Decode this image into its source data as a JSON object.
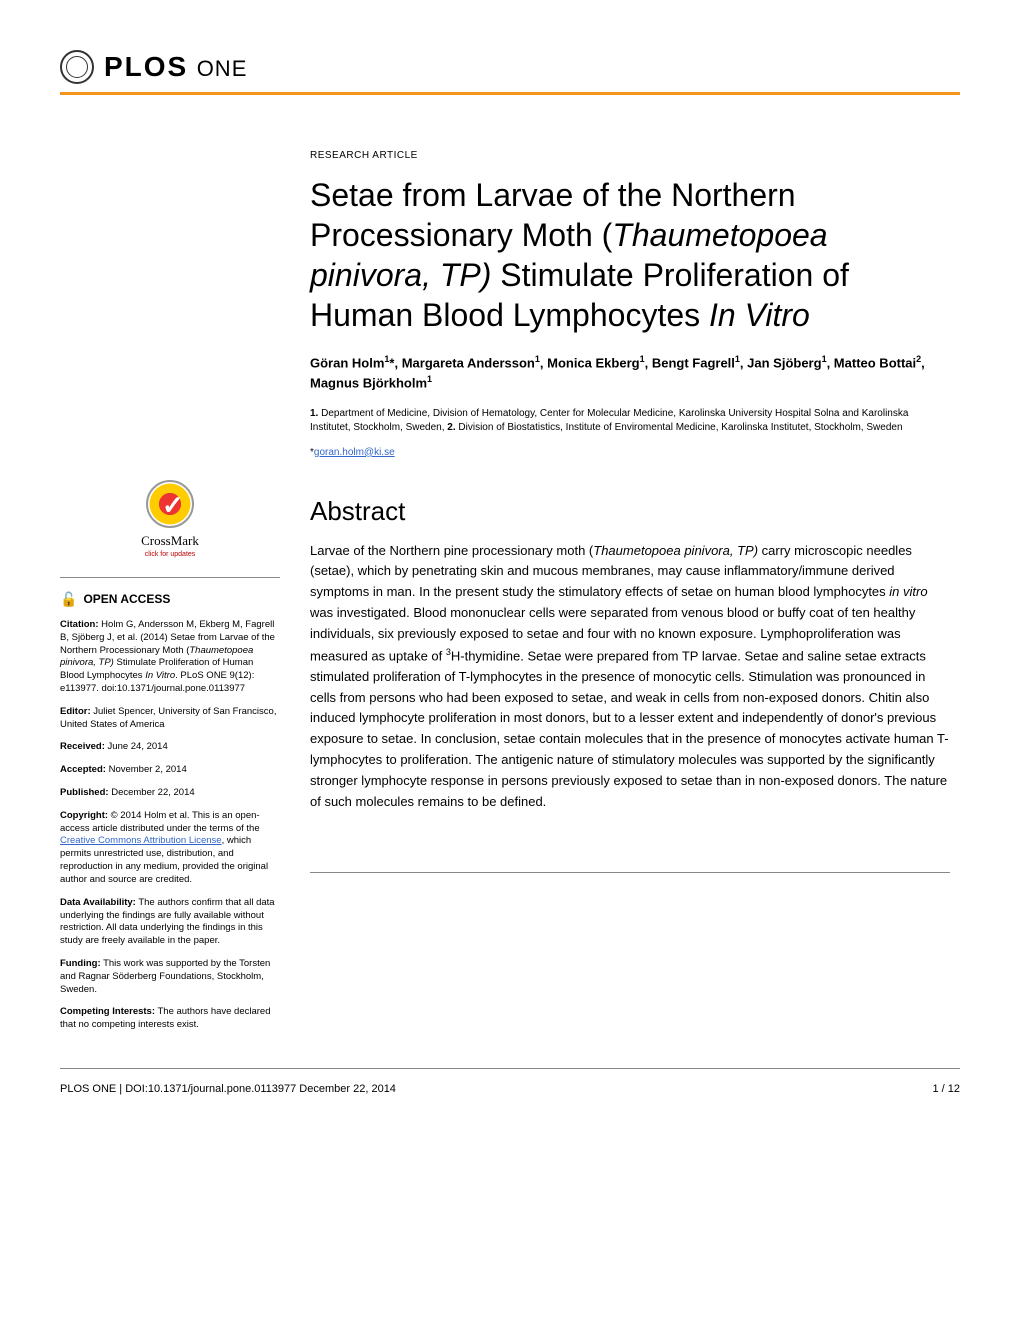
{
  "colors": {
    "accent": "#F7941E",
    "link": "#3366cc",
    "text": "#000000",
    "rule": "#888888",
    "background": "#ffffff"
  },
  "typography": {
    "body_font": "Arial, Helvetica, sans-serif",
    "title_font": "Trebuchet MS, Lucida Sans, sans-serif",
    "title_size_pt": 32,
    "abstract_heading_size_pt": 26,
    "body_size_pt": 13,
    "sidebar_size_pt": 9.5
  },
  "header": {
    "logo_main": "PLOS",
    "logo_sub": "ONE"
  },
  "article": {
    "type": "RESEARCH ARTICLE",
    "title_pre": "Setae from Larvae of the Northern Processionary Moth (",
    "title_italic1": "Thaumetopoea pinivora, TP)",
    "title_mid": " Stimulate Proliferation of Human Blood Lymphocytes ",
    "title_italic2": "In Vitro",
    "authors_html": "Göran Holm<sup>1</sup>*, Margareta Andersson<sup>1</sup>, Monica Ekberg<sup>1</sup>, Bengt Fagrell<sup>1</sup>, Jan Sjöberg<sup>1</sup>, Matteo Bottai<sup>2</sup>, Magnus Björkholm<sup>1</sup>",
    "affiliations_html": "<b>1.</b> Department of Medicine, Division of Hematology, Center for Molecular Medicine, Karolinska University Hospital Solna and Karolinska Institutet, Stockholm, Sweden, <b>2.</b> Division of Biostatistics, Institute of Enviromental Medicine, Karolinska Institutet, Stockholm, Sweden",
    "email": "goran.holm@ki.se"
  },
  "abstract": {
    "heading": "Abstract",
    "text_html": "Larvae of the Northern pine processionary moth (<span class=\"italic\">Thaumetopoea pinivora, TP)</span> carry microscopic needles (setae), which by penetrating skin and mucous membranes, may cause inflammatory/immune derived symptoms in man. In the present study the stimulatory effects of setae on human blood lymphocytes <span class=\"italic\">in vitro</span> was investigated. Blood mononuclear cells were separated from venous blood or buffy coat of ten healthy individuals, six previously exposed to setae and four with no known exposure. Lymphoproliferation was measured as uptake of <sup>3</sup>H-thymidine. Setae were prepared from TP larvae. Setae and saline setae extracts stimulated proliferation of T-lymphocytes in the presence of monocytic cells. Stimulation was pronounced in cells from persons who had been exposed to setae, and weak in cells from non-exposed donors. Chitin also induced lymphocyte proliferation in most donors, but to a lesser extent and independently of donor's previous exposure to setae. In conclusion, setae contain molecules that in the presence of monocytes activate human T-lymphocytes to proliferation. The antigenic nature of stimulatory molecules was supported by the significantly stronger lymphocyte response in persons previously exposed to setae than in non-exposed donors. The nature of such molecules remains to be defined."
  },
  "sidebar": {
    "crossmark_label": "CrossMark",
    "crossmark_sub": "click for updates",
    "open_access": "OPEN ACCESS",
    "citation_label": "Citation:",
    "citation_text": " Holm G, Andersson M, Ekberg M, Fagrell B, Sjöberg J, et al. (2014) Setae from Larvae of the Northern Processionary Moth (",
    "citation_italic": "Thaumetopoea pinivora, TP)",
    "citation_text2": " Stimulate Proliferation of Human Blood Lymphocytes ",
    "citation_italic2": "In Vitro",
    "citation_text3": ". PLoS ONE 9(12): e113977. doi:10.1371/journal.pone.0113977",
    "editor_label": "Editor:",
    "editor_text": " Juliet Spencer, University of San Francisco, United States of America",
    "received_label": "Received:",
    "received_text": " June 24, 2014",
    "accepted_label": "Accepted:",
    "accepted_text": " November 2, 2014",
    "published_label": "Published:",
    "published_text": " December 22, 2014",
    "copyright_label": "Copyright:",
    "copyright_text1": " © 2014 Holm et al. This is an open-access article distributed under the terms of the ",
    "cc_link": "Creative Commons Attribution License",
    "copyright_text2": ", which permits unrestricted use, distribution, and reproduction in any medium, provided the original author and source are credited.",
    "data_label": "Data Availability:",
    "data_text": " The authors confirm that all data underlying the findings are fully available without restriction. All data underlying the findings in this study are freely available in the paper.",
    "funding_label": "Funding:",
    "funding_text": " This work was supported by the Torsten and Ragnar Söderberg Foundations, Stockholm, Sweden.",
    "competing_label": "Competing Interests:",
    "competing_text": " The authors have declared that no competing interests exist."
  },
  "footer": {
    "left": "PLOS ONE | DOI:10.1371/journal.pone.0113977   December 22, 2014",
    "right": "1 / 12"
  }
}
